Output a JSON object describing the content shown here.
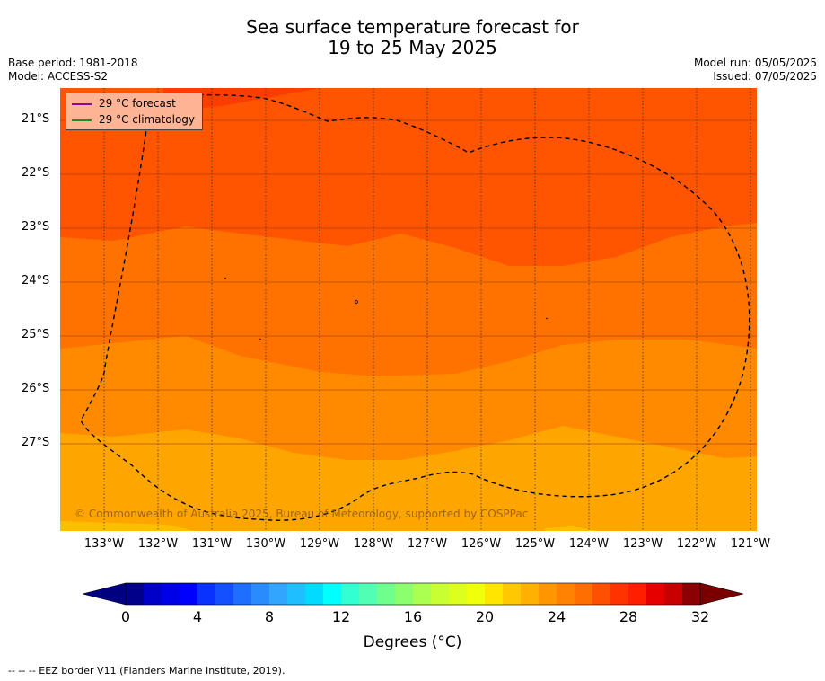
{
  "title": {
    "line1": "Sea surface temperature forecast for",
    "line2": "19 to 25 May 2025"
  },
  "meta_left": {
    "base_period": "Base period: 1981-2018",
    "model": "Model: ACCESS-S2"
  },
  "meta_right": {
    "model_run": "Model run: 05/05/2025",
    "issued": "Issued: 07/05/2025"
  },
  "legend": {
    "forecast_label": "29 °C  forecast",
    "forecast_color": "#8b0a8b",
    "climatology_label": "29 °C  climatology",
    "climatology_color": "#228b22"
  },
  "copyright": "© Commonwealth of Australia 2025, Bureau of Meteorology, supported by COSPPac",
  "longitude_labels": [
    "133°W",
    "132°W",
    "131°W",
    "130°W",
    "129°W",
    "128°W",
    "127°W",
    "126°W",
    "125°W",
    "124°W",
    "123°W",
    "122°W",
    "121°W"
  ],
  "latitude_labels": [
    "21°S",
    "22°S",
    "23°S",
    "24°S",
    "25°S",
    "26°S",
    "27°S"
  ],
  "colorbar": {
    "ticks": [
      "0",
      "4",
      "8",
      "12",
      "16",
      "20",
      "24",
      "28",
      "32"
    ],
    "label": "Degrees (°C)",
    "colors": [
      "#00008b",
      "#0000c8",
      "#0000e6",
      "#0000ff",
      "#0a32ff",
      "#1450ff",
      "#1e6eff",
      "#288cff",
      "#32a5ff",
      "#1ebeff",
      "#00dcff",
      "#00ffff",
      "#32ffd2",
      "#50ffb4",
      "#6eff8c",
      "#8cff6e",
      "#aaff50",
      "#c8ff32",
      "#dcff1e",
      "#f0ff0a",
      "#ffe600",
      "#ffc800",
      "#ffb000",
      "#ff9600",
      "#ff8200",
      "#ff6e00",
      "#ff5000",
      "#ff3200",
      "#ff1e00",
      "#e60000",
      "#c80000",
      "#8b0000"
    ],
    "under_color": "#000080",
    "over_color": "#7a0000"
  },
  "footer": "--  --  -- EEZ border V11 (Flanders Marine Institute, 2019)."
}
